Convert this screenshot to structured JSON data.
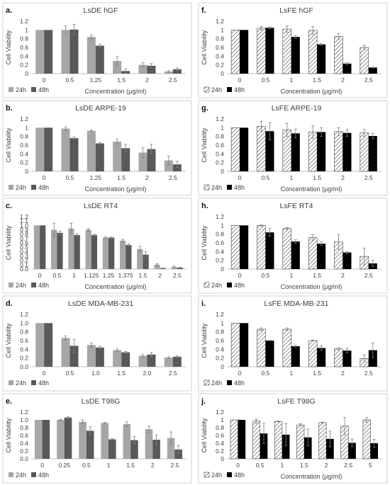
{
  "chart_data": [
    {
      "panel_label": "a.",
      "type": "bar",
      "title": "LsDE hGF",
      "ylabel": "Cell Viability",
      "xlabel": "Concentration (μg/ml)",
      "categories": [
        "0",
        "0.5",
        "1.25",
        "1.5",
        "2",
        "2.5"
      ],
      "y_ticks": [
        "0",
        "0.2",
        "0.4",
        "0.6",
        "0.8",
        "1",
        "1.2"
      ],
      "ylim": [
        0,
        1.2
      ],
      "legend_position": "bottom-left",
      "series": [
        {
          "name": "24h",
          "values": [
            1.0,
            1.0,
            0.84,
            0.29,
            0.2,
            0.05
          ],
          "errors": [
            0,
            0.09,
            0.04,
            0.1,
            0.05,
            0.02
          ]
        },
        {
          "name": "48h",
          "values": [
            1.0,
            1.01,
            0.64,
            0.06,
            0.18,
            0.1
          ],
          "errors": [
            0,
            0.12,
            0.03,
            0.05,
            0.05,
            0.03
          ]
        }
      ],
      "colors": [
        "#a6a6a6",
        "#595959"
      ],
      "patterns": [
        "solid",
        "solid"
      ]
    },
    {
      "panel_label": "b.",
      "type": "bar",
      "title": "LsDE ARPE-19",
      "ylabel": "Cell Viability",
      "xlabel": "Concentration (μg/ml)",
      "categories": [
        "0",
        "0.5",
        "1.25",
        "1.5",
        "2",
        "2.5"
      ],
      "y_ticks": [
        "0",
        "0.2",
        "0.4",
        "0.6",
        "0.8",
        "1",
        "1.2"
      ],
      "ylim": [
        0,
        1.2
      ],
      "legend_position": "bottom-left",
      "series": [
        {
          "name": "24h",
          "values": [
            1.0,
            0.98,
            0.93,
            0.68,
            0.43,
            0.25
          ],
          "errors": [
            0,
            0.04,
            0.02,
            0.06,
            0.11,
            0.1
          ]
        },
        {
          "name": "48h",
          "values": [
            1.0,
            0.76,
            0.64,
            0.53,
            0.51,
            0.16
          ],
          "errors": [
            0,
            0.03,
            0.02,
            0.09,
            0.11,
            0.07
          ]
        }
      ],
      "colors": [
        "#a6a6a6",
        "#595959"
      ],
      "patterns": [
        "solid",
        "solid"
      ]
    },
    {
      "panel_label": "c.",
      "type": "bar",
      "title": "LsDE RT4",
      "ylabel": "Cell Viability",
      "xlabel": "Concentration (μg/ml)",
      "categories": [
        "0",
        "0.5",
        "1",
        "1.125",
        "1.25",
        "1.375",
        "1.5",
        "2",
        "2.5"
      ],
      "y_ticks": [
        "0.0",
        "0.1",
        "0.2",
        "0.3",
        "0.4",
        "0.5",
        "0.6",
        "0.7",
        "0.8",
        "0.9",
        "1.0",
        "1.1",
        "1.2"
      ],
      "ylim": [
        0,
        1.2
      ],
      "legend_position": "bottom-left",
      "series": [
        {
          "name": "24h",
          "values": [
            1.0,
            0.9,
            0.93,
            0.9,
            0.72,
            0.65,
            0.46,
            0.1,
            0.05
          ],
          "errors": [
            0,
            0.15,
            0.12,
            0.03,
            0.02,
            0.03,
            0.06,
            0.02,
            0.02
          ]
        },
        {
          "name": "48h",
          "values": [
            1.0,
            0.83,
            0.78,
            0.78,
            0.72,
            0.55,
            0.33,
            0.02,
            0.03
          ],
          "errors": [
            0,
            0.04,
            0.03,
            0.02,
            0.02,
            0.03,
            0.07,
            0.01,
            0.01
          ]
        }
      ],
      "colors": [
        "#a6a6a6",
        "#595959"
      ],
      "patterns": [
        "solid",
        "solid"
      ]
    },
    {
      "panel_label": "d.",
      "type": "bar",
      "title": "LsDE MDA-MB-231",
      "ylabel": "Cell Viability",
      "xlabel": "",
      "categories": [
        "0",
        "0.5",
        "1.0",
        "1.5",
        "2.0",
        "2.5"
      ],
      "y_ticks": [
        "0.0",
        "0.2",
        "0.4",
        "0.6",
        "0.8",
        "1.0",
        "1.2"
      ],
      "ylim": [
        0,
        1.2
      ],
      "legend_position": "bottom-left",
      "series": [
        {
          "name": "24h",
          "values": [
            1.0,
            0.66,
            0.5,
            0.38,
            0.25,
            0.21
          ],
          "errors": [
            0,
            0.05,
            0.05,
            0.03,
            0.03,
            0.02
          ]
        },
        {
          "name": "48h",
          "values": [
            1.0,
            0.48,
            0.44,
            0.33,
            0.28,
            0.23
          ],
          "errors": [
            0,
            0.15,
            0.03,
            0.02,
            0.05,
            0.02
          ]
        }
      ],
      "colors": [
        "#a6a6a6",
        "#595959"
      ],
      "patterns": [
        "solid",
        "solid"
      ]
    },
    {
      "panel_label": "e.",
      "type": "bar",
      "title": "LsDE T98G",
      "ylabel": "Cell Viability",
      "xlabel": "",
      "categories": [
        "0",
        "0.25",
        "0.5",
        "1",
        "1.5",
        "2",
        "2.5"
      ],
      "y_ticks": [
        "0.0",
        "0.2",
        "0.4",
        "0.6",
        "0.8",
        "1.0",
        "1.2"
      ],
      "ylim": [
        0,
        1.2
      ],
      "legend_position": "bottom-left",
      "series": [
        {
          "name": "24h",
          "values": [
            1.0,
            1.0,
            0.95,
            0.92,
            0.89,
            0.76,
            0.53
          ],
          "errors": [
            0,
            0.01,
            0.05,
            0.02,
            0.06,
            0.08,
            0.16
          ]
        },
        {
          "name": "48h",
          "values": [
            1.0,
            1.06,
            0.72,
            0.5,
            0.48,
            0.49,
            0.24
          ],
          "errors": [
            0,
            0.02,
            0.1,
            0.02,
            0.09,
            0.12,
            0.1
          ]
        }
      ],
      "colors": [
        "#a6a6a6",
        "#595959"
      ],
      "patterns": [
        "solid",
        "solid"
      ]
    },
    {
      "panel_label": "f.",
      "type": "bar",
      "title": "LsFE hGF",
      "ylabel": "Cell Viability",
      "xlabel": "Concentration (μg/ml)",
      "categories": [
        "0",
        "0.5",
        "1",
        "1.5",
        "2",
        "2.5"
      ],
      "y_ticks": [
        "0",
        "0.2",
        "0.4",
        "0.6",
        "0.8",
        "1",
        "1.2"
      ],
      "ylim": [
        0,
        1.2
      ],
      "legend_position": "bottom-left",
      "series": [
        {
          "name": "24h",
          "values": [
            1.0,
            1.04,
            1.02,
            0.99,
            0.85,
            0.6
          ],
          "errors": [
            0,
            0.04,
            0.07,
            0.09,
            0.07,
            0.05
          ]
        },
        {
          "name": "48h",
          "values": [
            1.0,
            1.05,
            0.84,
            0.67,
            0.23,
            0.14
          ],
          "errors": [
            0,
            0.02,
            0.03,
            0.02,
            0.02,
            0.01
          ]
        }
      ],
      "colors": [
        "#ffffff",
        "#000000"
      ],
      "patterns": [
        "hatch",
        "solid"
      ]
    },
    {
      "panel_label": "g.",
      "type": "bar",
      "title": "LsFE ARPE-19",
      "ylabel": "Cell Viability",
      "xlabel": "Concentration (μg/ml)",
      "categories": [
        "0",
        "0.5",
        "1",
        "1.5",
        "2",
        "2.5"
      ],
      "y_ticks": [
        "0",
        "0.2",
        "0.4",
        "0.6",
        "0.8",
        "1",
        "1.2"
      ],
      "ylim": [
        0,
        1.2
      ],
      "legend_position": "bottom-left",
      "series": [
        {
          "name": "24h",
          "values": [
            1.0,
            1.03,
            0.95,
            0.9,
            0.91,
            0.88
          ],
          "errors": [
            0,
            0.12,
            0.15,
            0.14,
            0.09,
            0.08
          ]
        },
        {
          "name": "48h",
          "values": [
            1.0,
            0.92,
            0.87,
            0.9,
            0.88,
            0.81
          ],
          "errors": [
            0,
            0.2,
            0.1,
            0.1,
            0.08,
            0.06
          ]
        }
      ],
      "colors": [
        "#ffffff",
        "#000000"
      ],
      "patterns": [
        "hatch",
        "solid"
      ]
    },
    {
      "panel_label": "h.",
      "type": "bar",
      "title": "LsFE RT4",
      "ylabel": "Cell Viability",
      "xlabel": "Concentration (μg/ml)",
      "categories": [
        "0",
        "0.5",
        "1",
        "1.5",
        "2",
        "2.5"
      ],
      "y_ticks": [
        "0",
        "0.2",
        "0.4",
        "0.6",
        "0.8",
        "1",
        "1.2"
      ],
      "ylim": [
        0,
        1.2
      ],
      "legend_position": "bottom-left",
      "series": [
        {
          "name": "24h",
          "values": [
            1.0,
            1.0,
            0.93,
            0.72,
            0.62,
            0.29
          ],
          "errors": [
            0,
            0.01,
            0.02,
            0.07,
            0.17,
            0.19
          ]
        },
        {
          "name": "48h",
          "values": [
            1.0,
            0.84,
            0.63,
            0.58,
            0.38,
            0.13
          ],
          "errors": [
            0,
            0.09,
            0.04,
            0.04,
            0.02,
            0.07
          ]
        }
      ],
      "colors": [
        "#ffffff",
        "#000000"
      ],
      "patterns": [
        "hatch",
        "solid"
      ]
    },
    {
      "panel_label": "i.",
      "type": "bar",
      "title": "LsFE MDA-MB-231",
      "ylabel": "Cell Viability",
      "xlabel": "",
      "categories": [
        "0",
        "0.5",
        "1",
        "1.5",
        "2",
        "2.5"
      ],
      "y_ticks": [
        "0",
        "0.2",
        "0.4",
        "0.6",
        "0.8",
        "1",
        "1.2"
      ],
      "ylim": [
        0,
        1.2
      ],
      "legend_position": "bottom-left",
      "series": [
        {
          "name": "24h",
          "values": [
            1.0,
            0.86,
            0.86,
            0.6,
            0.41,
            0.19
          ],
          "errors": [
            0,
            0.03,
            0.03,
            0.01,
            0.03,
            0.08
          ]
        },
        {
          "name": "48h",
          "values": [
            1.0,
            0.6,
            0.47,
            0.43,
            0.37,
            0.38
          ],
          "errors": [
            0,
            0.01,
            0.02,
            0.05,
            0.05,
            0.17
          ]
        }
      ],
      "colors": [
        "#ffffff",
        "#000000"
      ],
      "patterns": [
        "hatch",
        "solid"
      ]
    },
    {
      "panel_label": "j.",
      "type": "bar",
      "title": "LsFE T98G",
      "ylabel": "Cell Viability",
      "xlabel": "Concentration (μg/ml)",
      "categories": [
        "0",
        "0.5",
        "1",
        "1.5",
        "2",
        "2.5",
        "5"
      ],
      "y_ticks": [
        "0",
        "0.2",
        "0.4",
        "0.6",
        "0.8",
        "1",
        "1.2"
      ],
      "ylim": [
        0,
        1.2
      ],
      "legend_position": "bottom-left",
      "series": [
        {
          "name": "24h",
          "values": [
            1.0,
            0.97,
            0.96,
            0.87,
            0.93,
            0.84,
            1.0
          ],
          "errors": [
            0,
            0.05,
            0.01,
            0.03,
            0.01,
            0.22,
            0.06
          ]
        },
        {
          "name": "48h",
          "values": [
            1.0,
            0.65,
            0.62,
            0.55,
            0.51,
            0.41,
            0.4
          ],
          "errors": [
            0,
            0.26,
            0.28,
            0.21,
            0.2,
            0.1,
            0.1
          ]
        }
      ],
      "colors": [
        "#ffffff",
        "#000000"
      ],
      "patterns": [
        "hatch",
        "solid"
      ]
    }
  ]
}
